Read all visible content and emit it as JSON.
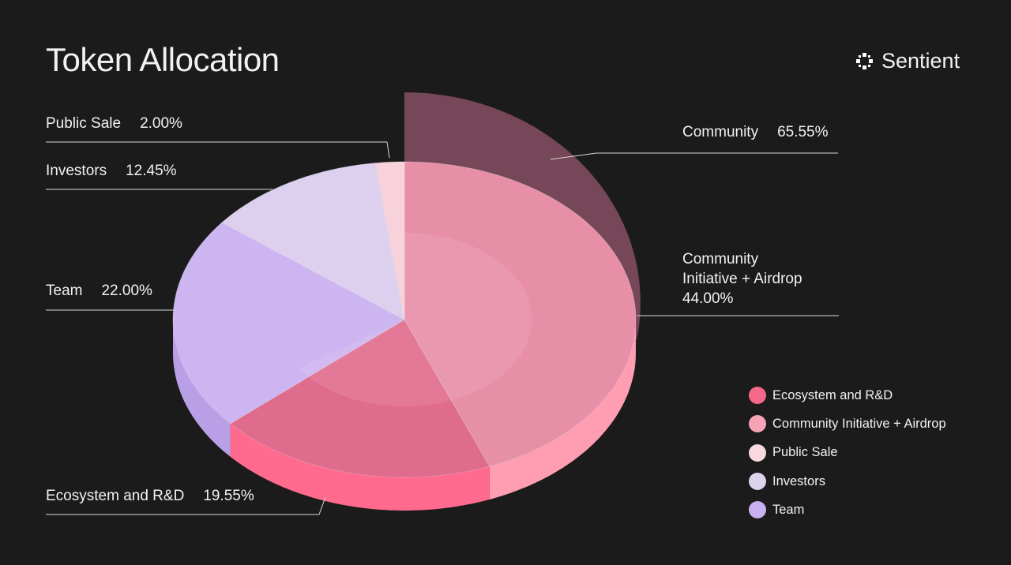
{
  "header": {
    "title": "Token Allocation",
    "brand": "Sentient"
  },
  "chart_data": {
    "type": "pie",
    "title": "Token Allocation",
    "slices": [
      {
        "name": "Community Initiative + Airdrop",
        "value": 44.0,
        "label_pct": "44.00%",
        "color": "#e88fa8",
        "side": "#ff9db3"
      },
      {
        "name": "Ecosystem and R&D",
        "value": 19.55,
        "label_pct": "19.55%",
        "color": "#e06c8d",
        "side": "#ff6a8e"
      },
      {
        "name": "Team",
        "value": 22.0,
        "label_pct": "22.00%",
        "color": "#cdb5f2",
        "side": "#b99fe6"
      },
      {
        "name": "Investors",
        "value": 12.45,
        "label_pct": "12.45%",
        "color": "#ddd0ee",
        "side": "#cbbde0"
      },
      {
        "name": "Public Sale",
        "value": 2.0,
        "label_pct": "2.00%",
        "color": "#f7d2da",
        "side": "#f0c0cc"
      }
    ],
    "group": {
      "name": "Community",
      "value": 65.55,
      "label_pct": "65.55%",
      "color": "#7a4a5c"
    },
    "labels": {
      "community_initiative_lines": [
        "Community",
        "Initiative + Airdrop",
        "44.00%"
      ]
    },
    "legend": {
      "placement": "bottom-right",
      "items": [
        {
          "label": "Ecosystem and R&D",
          "color": "#f56889"
        },
        {
          "label": "Community Initiative + Airdrop",
          "color": "#f7a3b6"
        },
        {
          "label": "Public Sale",
          "color": "#fad8df"
        },
        {
          "label": "Investors",
          "color": "#ddd2ee"
        },
        {
          "label": "Team",
          "color": "#c8b1f0"
        }
      ]
    }
  }
}
